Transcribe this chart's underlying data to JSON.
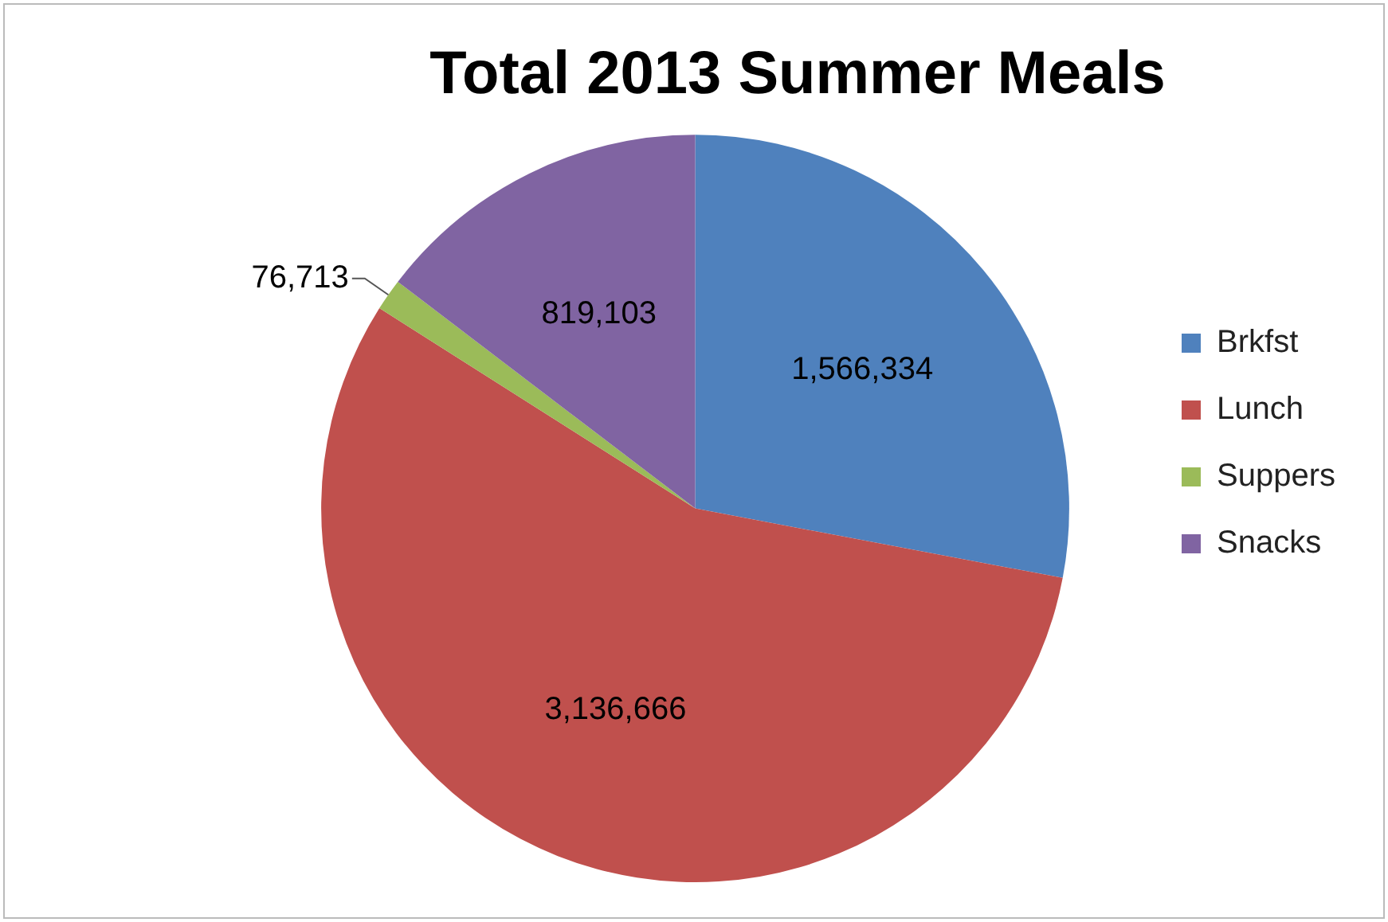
{
  "chart_data": {
    "type": "pie",
    "title": "Total 2013 Summer Meals",
    "categories": [
      "Brkfst",
      "Lunch",
      "Suppers",
      "Snacks"
    ],
    "values": [
      1566334,
      3136666,
      76713,
      819103
    ],
    "value_labels": [
      "1,566,334",
      "3,136,666",
      "76,713",
      "819,103"
    ],
    "colors": [
      "#4f81bd",
      "#c0504d",
      "#9bbb59",
      "#8064a2"
    ],
    "legend": "right"
  }
}
